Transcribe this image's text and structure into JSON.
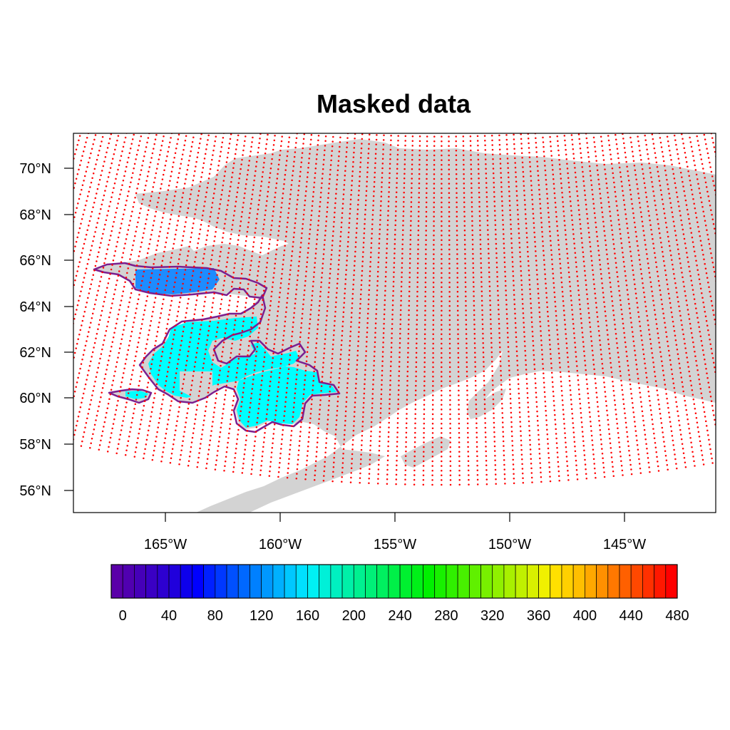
{
  "title": "Masked data",
  "lat_axis": {
    "ticks": [
      "70°N",
      "68°N",
      "66°N",
      "64°N",
      "62°N",
      "60°N",
      "58°N",
      "56°N"
    ]
  },
  "lon_axis": {
    "ticks": [
      "165°W",
      "160°W",
      "155°W",
      "150°W",
      "145°W"
    ]
  },
  "colorbar": {
    "labels": [
      "0",
      "40",
      "80",
      "120",
      "160",
      "200",
      "240",
      "280",
      "320",
      "360",
      "400",
      "440",
      "480"
    ],
    "min": 0,
    "max": 500,
    "step": 10,
    "colors": [
      "#5a00a8",
      "#5000b0",
      "#4500b8",
      "#3a00c4",
      "#2d00d0",
      "#2000dc",
      "#0d00ec",
      "#0000ff",
      "#0020ff",
      "#0038ff",
      "#0050ff",
      "#0068ff",
      "#0080ff",
      "#0098ff",
      "#00b0ff",
      "#00c8ff",
      "#00e0ff",
      "#00f0f4",
      "#00f0d8",
      "#00f0c0",
      "#00f0a8",
      "#00f090",
      "#00f078",
      "#00f060",
      "#00f048",
      "#00f030",
      "#00f018",
      "#00f000",
      "#18f000",
      "#30f000",
      "#48f000",
      "#60f000",
      "#78f000",
      "#90f000",
      "#a8f000",
      "#c0f000",
      "#d8f000",
      "#f0f000",
      "#ffe000",
      "#ffd000",
      "#ffbf00",
      "#ffa800",
      "#ff9000",
      "#ff7800",
      "#ff6000",
      "#ff4800",
      "#ff3000",
      "#ff1800",
      "#ff0000"
    ]
  },
  "colors": {
    "land": "#d3d3d3",
    "grid_points": "#ff0000",
    "mask_outline": "#7b1f8f",
    "frame": "#000000"
  }
}
